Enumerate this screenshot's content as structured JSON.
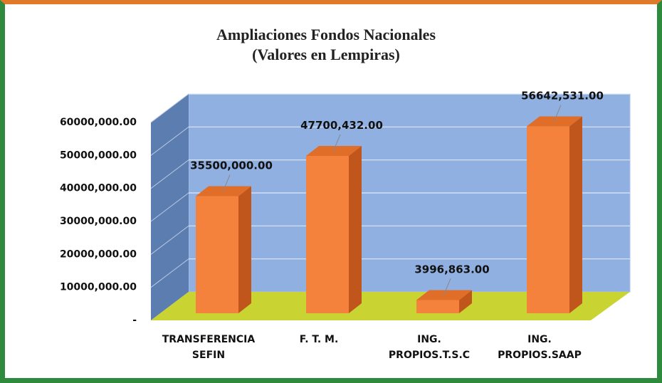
{
  "chart_data": {
    "type": "bar3d",
    "title": "Ampliaciones Fondos Nacionales",
    "subtitle": "(Valores en Lempiras)",
    "categories": [
      "TRANSFERENCIA SEFIN",
      "F. T. M.",
      "ING. PROPIOS.T.S.C",
      "ING. PROPIOS.SAAP"
    ],
    "values": [
      35500000,
      47700432,
      3996863,
      56642531
    ],
    "value_labels": [
      "35500,000.00",
      "47700,432.00",
      "3996,863.00",
      "56642,531.00"
    ],
    "color": "#f4823c",
    "ylim": [
      0,
      60000000
    ],
    "yticks": [
      {
        "value": 0,
        "label": "-"
      },
      {
        "value": 10000000,
        "label": "10000,000.00"
      },
      {
        "value": 20000000,
        "label": "20000,000.00"
      },
      {
        "value": 30000000,
        "label": "30000,000.00"
      },
      {
        "value": 40000000,
        "label": "40000,000.00"
      },
      {
        "value": 50000000,
        "label": "50000,000.00"
      },
      {
        "value": 60000000,
        "label": "60000,000.00"
      }
    ],
    "grid": true
  }
}
